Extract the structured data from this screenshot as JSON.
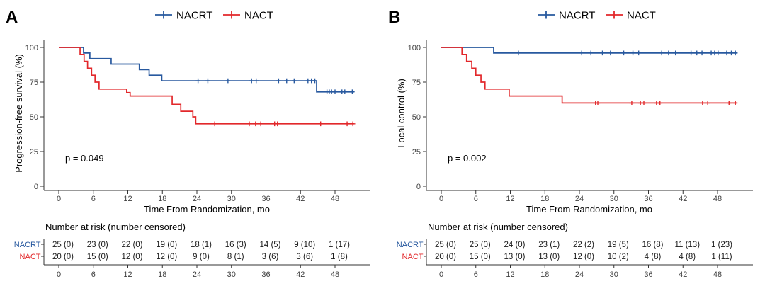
{
  "figure": {
    "background": "#ffffff"
  },
  "chart_data": [
    {
      "type": "line",
      "subtype": "kaplan-meier-step",
      "panel_label": "A",
      "title": "",
      "xlabel": "Time From Randomization, mo",
      "ylabel": "Progression-free survival (%)",
      "p_value": "p = 0.049",
      "xlim": [
        0,
        51.5
      ],
      "ylim": [
        0,
        100
      ],
      "x_ticks": [
        0,
        6,
        12,
        18,
        24,
        30,
        36,
        42,
        48
      ],
      "y_ticks": [
        0,
        25,
        50,
        75,
        100
      ],
      "grid": false,
      "legend_position": "top",
      "series": [
        {
          "name": "NACRT",
          "color": "#28599F",
          "steps": [
            [
              0,
              100
            ],
            [
              4.3,
              96
            ],
            [
              5.4,
              92
            ],
            [
              9.1,
              88
            ],
            [
              14,
              84
            ],
            [
              15.7,
              80
            ],
            [
              17.9,
              76
            ],
            [
              44.8,
              68
            ]
          ],
          "end_time": 51.3,
          "censor_times": [
            24.2,
            25.9,
            29.4,
            33.5,
            34.3,
            38.2,
            39.6,
            40.9,
            43.3,
            43.9,
            44.5,
            46.6,
            47.0,
            47.4,
            48.0,
            49.2,
            49.7,
            51.0
          ]
        },
        {
          "name": "NACT",
          "color": "#E2282B",
          "steps": [
            [
              0,
              100
            ],
            [
              3.7,
              95
            ],
            [
              4.4,
              90
            ],
            [
              5.0,
              85
            ],
            [
              5.7,
              80
            ],
            [
              6.3,
              75
            ],
            [
              7.0,
              70
            ],
            [
              11.8,
              67.5
            ],
            [
              12.4,
              65
            ],
            [
              19.7,
              59
            ],
            [
              21.2,
              54
            ],
            [
              23.3,
              50
            ],
            [
              23.8,
              45
            ]
          ],
          "end_time": 51.3,
          "censor_times": [
            27.1,
            33.1,
            34.2,
            35.1,
            37.5,
            38.0,
            45.5,
            50.1,
            51.1
          ]
        }
      ],
      "risk_table": {
        "header": "Number at risk (number censored)",
        "time_points": [
          0,
          6,
          12,
          18,
          24,
          30,
          36,
          42,
          48
        ],
        "rows": [
          {
            "name": "NACRT",
            "color": "#28599F",
            "values": [
              "25 (0)",
              "23 (0)",
              "22 (0)",
              "19 (0)",
              "18 (1)",
              "16 (3)",
              "14 (5)",
              "9 (10)",
              "1 (17)"
            ]
          },
          {
            "name": "NACT",
            "color": "#E2282B",
            "values": [
              "20 (0)",
              "15 (0)",
              "12 (0)",
              "12 (0)",
              "9 (0)",
              "8 (1)",
              "3 (6)",
              "3 (6)",
              "1 (8)"
            ]
          }
        ]
      }
    },
    {
      "type": "line",
      "subtype": "kaplan-meier-step",
      "panel_label": "B",
      "title": "",
      "xlabel": "Time From Randomization, mo",
      "ylabel": "Local control (%)",
      "p_value": "p = 0.002",
      "xlim": [
        0,
        51.5
      ],
      "ylim": [
        0,
        100
      ],
      "x_ticks": [
        0,
        6,
        12,
        18,
        24,
        30,
        36,
        42,
        48
      ],
      "y_ticks": [
        0,
        25,
        50,
        75,
        100
      ],
      "grid": false,
      "legend_position": "top",
      "series": [
        {
          "name": "NACRT",
          "color": "#28599F",
          "steps": [
            [
              0,
              100
            ],
            [
              9.1,
              96
            ]
          ],
          "end_time": 51.3,
          "censor_times": [
            13.4,
            24.4,
            26.0,
            28.0,
            29.4,
            31.7,
            33.3,
            34.3,
            38.3,
            39.5,
            40.7,
            43.4,
            44.4,
            45.3,
            46.9,
            47.5,
            48.1,
            49.6,
            50.4,
            51.1
          ]
        },
        {
          "name": "NACT",
          "color": "#E2282B",
          "steps": [
            [
              0,
              100
            ],
            [
              3.6,
              95
            ],
            [
              4.4,
              90
            ],
            [
              5.3,
              85
            ],
            [
              6.0,
              80
            ],
            [
              6.9,
              75
            ],
            [
              7.6,
              70
            ],
            [
              11.8,
              65
            ],
            [
              21.0,
              60
            ]
          ],
          "end_time": 51.3,
          "censor_times": [
            26.8,
            27.2,
            33.1,
            34.6,
            35.2,
            37.4,
            38.0,
            45.4,
            46.3,
            50.0,
            51.1
          ]
        }
      ],
      "risk_table": {
        "header": "Number at risk (number censored)",
        "time_points": [
          0,
          6,
          12,
          18,
          24,
          30,
          36,
          42,
          48
        ],
        "rows": [
          {
            "name": "NACRT",
            "color": "#28599F",
            "values": [
              "25 (0)",
              "25 (0)",
              "24 (0)",
              "23 (1)",
              "22 (2)",
              "19 (5)",
              "16 (8)",
              "11 (13)",
              "1 (23)"
            ]
          },
          {
            "name": "NACT",
            "color": "#E2282B",
            "values": [
              "20 (0)",
              "15 (0)",
              "13 (0)",
              "13 (0)",
              "12 (0)",
              "10 (2)",
              "4 (8)",
              "4 (8)",
              "1 (11)"
            ]
          }
        ]
      }
    }
  ]
}
